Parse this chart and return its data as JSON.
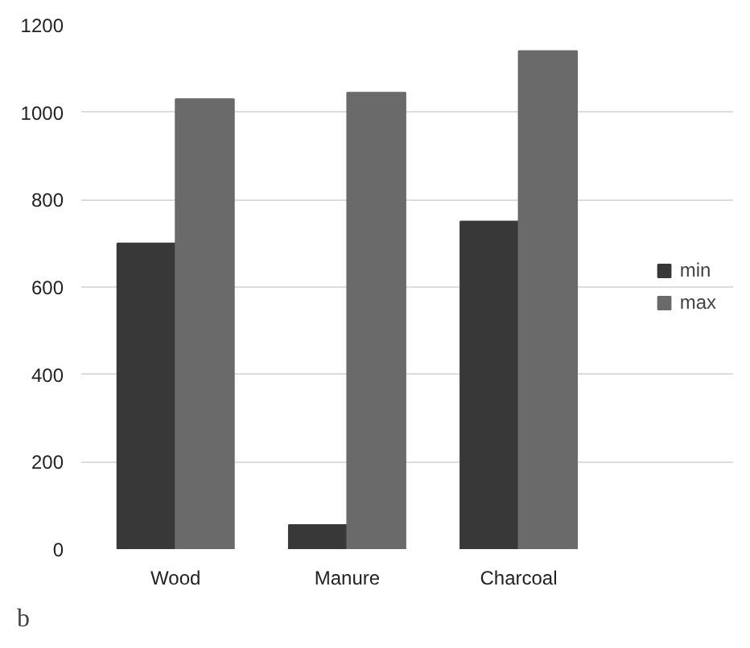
{
  "chart_data": {
    "type": "bar",
    "categories": [
      "Wood",
      "Manure",
      "Charcoal"
    ],
    "series": [
      {
        "name": "min",
        "color": "#383838",
        "values": [
          700,
          55,
          750
        ]
      },
      {
        "name": "max",
        "color": "#6a6a6a",
        "values": [
          1030,
          1045,
          1140
        ]
      }
    ],
    "ylim": [
      0,
      1200
    ],
    "yticks": [
      0,
      200,
      400,
      600,
      800,
      1000,
      1200
    ],
    "grid": "y",
    "legend": "right",
    "annotations": [
      "b"
    ]
  }
}
